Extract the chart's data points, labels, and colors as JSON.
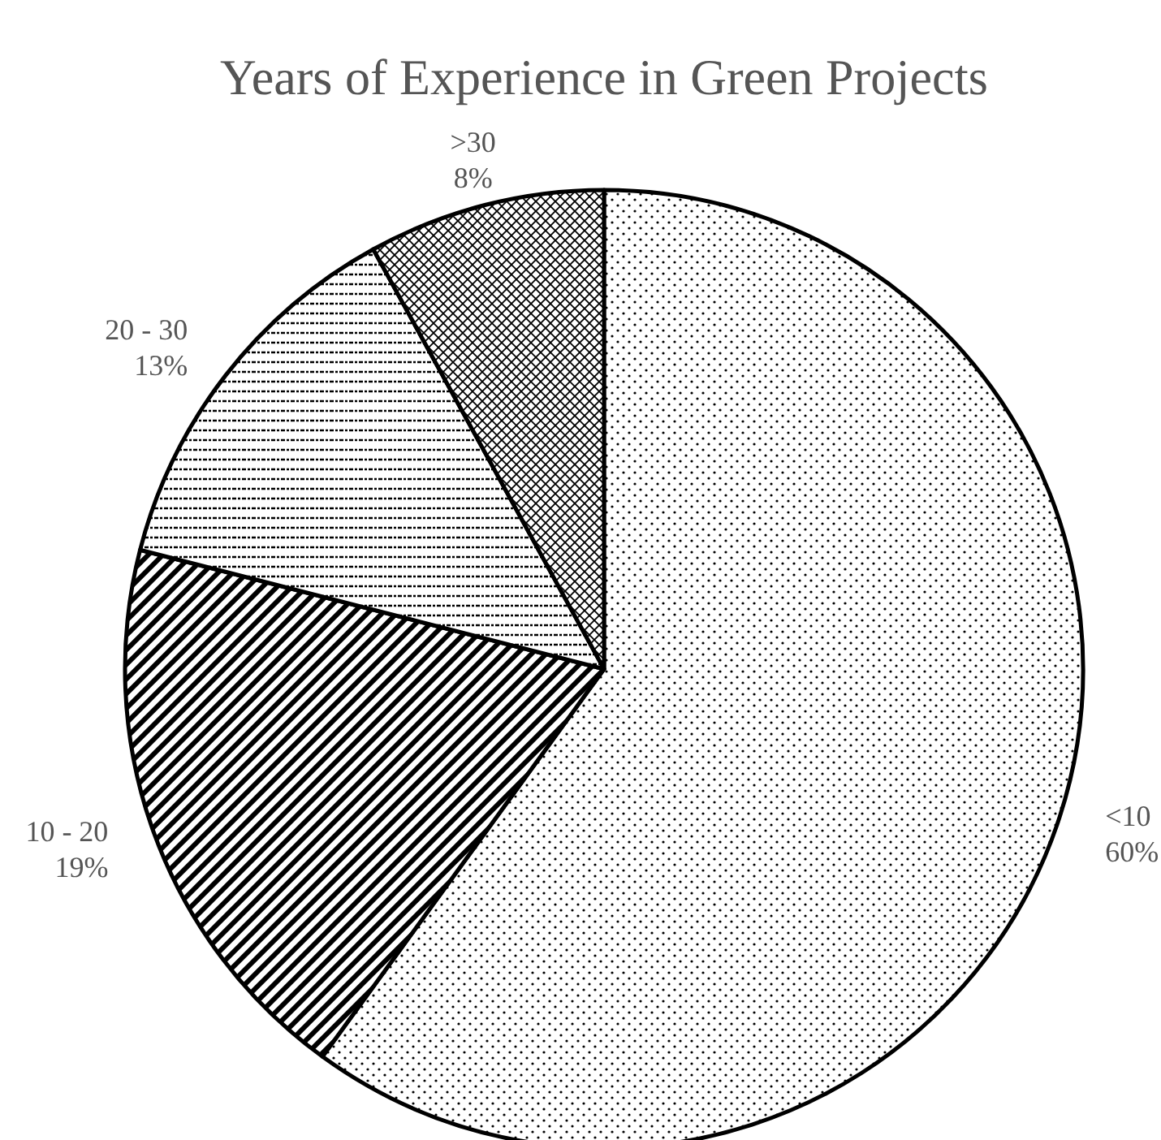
{
  "chart_data": {
    "type": "pie",
    "title": "Years of Experience in Green Projects",
    "categories": [
      "<10",
      "10 - 20",
      "20 - 30",
      ">30"
    ],
    "values": [
      60,
      19,
      13,
      8
    ],
    "value_labels": [
      "60%",
      "19%",
      "13%",
      "8%"
    ],
    "colors": [
      "#000000",
      "#000000",
      "#000000",
      "#000000"
    ]
  }
}
